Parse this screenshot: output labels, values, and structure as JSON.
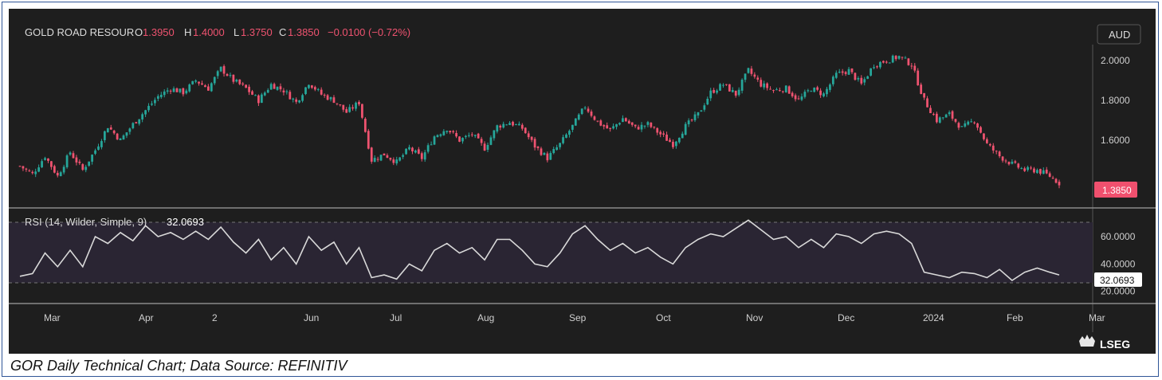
{
  "header": {
    "symbol": "GOLD ROAD RESOUR",
    "o_label": "O",
    "o_value": "1.3950",
    "h_label": "H",
    "h_value": "1.4000",
    "l_label": "L",
    "l_value": "1.3750",
    "c_label": "C",
    "c_value": "1.3850",
    "change": "−0.0100 (−0.72%)"
  },
  "currency": "AUD",
  "price_tag": "1.3850",
  "rsi_label": "RSI (14, Wilder, Simple, 9)",
  "rsi_value": "32.0693",
  "brand": "LSEG",
  "caption": "GOR Daily Technical Chart; Data Source: REFINITIV",
  "colors": {
    "up": "#26a69a",
    "down": "#ef5370",
    "background": "#1e1e1e",
    "rsi_band": "#2a2533",
    "rsi_line": "#d9d9d9",
    "price_tag": "#f0506e"
  },
  "chart_data": [
    {
      "type": "candlestick",
      "yticks": [
        "2.0000",
        "1.8000",
        "1.6000",
        "1.3850"
      ],
      "ylim": [
        1.3,
        2.08
      ],
      "xticks": [
        "Mar",
        "Apr",
        "2",
        "Jun",
        "Jul",
        "Aug",
        "Sep",
        "Oct",
        "Nov",
        "Dec",
        "2024",
        "Feb",
        "Mar"
      ],
      "close_path": [
        [
          0,
          1.47
        ],
        [
          4,
          1.43
        ],
        [
          8,
          1.52
        ],
        [
          12,
          1.42
        ],
        [
          16,
          1.54
        ],
        [
          20,
          1.45
        ],
        [
          24,
          1.55
        ],
        [
          28,
          1.67
        ],
        [
          32,
          1.6
        ],
        [
          36,
          1.68
        ],
        [
          40,
          1.75
        ],
        [
          44,
          1.82
        ],
        [
          48,
          1.86
        ],
        [
          52,
          1.84
        ],
        [
          56,
          1.9
        ],
        [
          60,
          1.86
        ],
        [
          64,
          1.96
        ],
        [
          68,
          1.9
        ],
        [
          72,
          1.86
        ],
        [
          76,
          1.8
        ],
        [
          80,
          1.88
        ],
        [
          84,
          1.85
        ],
        [
          88,
          1.79
        ],
        [
          92,
          1.89
        ],
        [
          96,
          1.83
        ],
        [
          100,
          1.8
        ],
        [
          104,
          1.74
        ],
        [
          108,
          1.79
        ],
        [
          112,
          1.5
        ],
        [
          116,
          1.53
        ],
        [
          120,
          1.49
        ],
        [
          124,
          1.56
        ],
        [
          128,
          1.51
        ],
        [
          132,
          1.62
        ],
        [
          136,
          1.66
        ],
        [
          140,
          1.6
        ],
        [
          144,
          1.63
        ],
        [
          148,
          1.56
        ],
        [
          152,
          1.67
        ],
        [
          156,
          1.69
        ],
        [
          160,
          1.66
        ],
        [
          164,
          1.57
        ],
        [
          168,
          1.51
        ],
        [
          172,
          1.58
        ],
        [
          176,
          1.67
        ],
        [
          180,
          1.77
        ],
        [
          184,
          1.69
        ],
        [
          188,
          1.65
        ],
        [
          192,
          1.71
        ],
        [
          196,
          1.66
        ],
        [
          200,
          1.68
        ],
        [
          204,
          1.63
        ],
        [
          208,
          1.58
        ],
        [
          212,
          1.67
        ],
        [
          216,
          1.73
        ],
        [
          220,
          1.84
        ],
        [
          224,
          1.88
        ],
        [
          228,
          1.83
        ],
        [
          232,
          1.95
        ],
        [
          236,
          1.88
        ],
        [
          240,
          1.85
        ],
        [
          244,
          1.86
        ],
        [
          248,
          1.8
        ],
        [
          252,
          1.86
        ],
        [
          256,
          1.83
        ],
        [
          260,
          1.93
        ],
        [
          264,
          1.95
        ],
        [
          268,
          1.88
        ],
        [
          272,
          1.98
        ],
        [
          276,
          2.0
        ],
        [
          280,
          2.02
        ],
        [
          284,
          1.98
        ],
        [
          288,
          1.8
        ],
        [
          292,
          1.7
        ],
        [
          296,
          1.73
        ],
        [
          300,
          1.66
        ],
        [
          304,
          1.7
        ],
        [
          308,
          1.58
        ],
        [
          312,
          1.52
        ],
        [
          316,
          1.48
        ],
        [
          320,
          1.45
        ],
        [
          324,
          1.45
        ],
        [
          328,
          1.42
        ],
        [
          331,
          1.385
        ]
      ]
    },
    {
      "type": "line",
      "series": [
        {
          "name": "RSI (14, Wilder, Simple, 9)"
        }
      ],
      "yticks": [
        "60.0000",
        "40.0000",
        "20.0000"
      ],
      "ylim": [
        14,
        74
      ],
      "levels": [
        70,
        30
      ],
      "points": [
        [
          0,
          31
        ],
        [
          4,
          33
        ],
        [
          8,
          48
        ],
        [
          12,
          38
        ],
        [
          16,
          50
        ],
        [
          20,
          38
        ],
        [
          24,
          60
        ],
        [
          28,
          55
        ],
        [
          32,
          63
        ],
        [
          36,
          57
        ],
        [
          40,
          68
        ],
        [
          44,
          60
        ],
        [
          48,
          63
        ],
        [
          52,
          58
        ],
        [
          56,
          64
        ],
        [
          60,
          58
        ],
        [
          64,
          67
        ],
        [
          68,
          56
        ],
        [
          72,
          48
        ],
        [
          76,
          58
        ],
        [
          80,
          43
        ],
        [
          84,
          52
        ],
        [
          88,
          40
        ],
        [
          92,
          60
        ],
        [
          96,
          50
        ],
        [
          100,
          56
        ],
        [
          104,
          40
        ],
        [
          108,
          52
        ],
        [
          112,
          30
        ],
        [
          116,
          32
        ],
        [
          120,
          29
        ],
        [
          124,
          40
        ],
        [
          128,
          35
        ],
        [
          132,
          50
        ],
        [
          136,
          55
        ],
        [
          140,
          48
        ],
        [
          144,
          52
        ],
        [
          148,
          43
        ],
        [
          152,
          58
        ],
        [
          156,
          58
        ],
        [
          160,
          50
        ],
        [
          164,
          40
        ],
        [
          168,
          38
        ],
        [
          172,
          48
        ],
        [
          176,
          62
        ],
        [
          180,
          68
        ],
        [
          184,
          58
        ],
        [
          188,
          50
        ],
        [
          192,
          55
        ],
        [
          196,
          48
        ],
        [
          200,
          52
        ],
        [
          204,
          45
        ],
        [
          208,
          40
        ],
        [
          212,
          52
        ],
        [
          216,
          58
        ],
        [
          220,
          62
        ],
        [
          224,
          60
        ],
        [
          228,
          66
        ],
        [
          232,
          72
        ],
        [
          236,
          65
        ],
        [
          240,
          58
        ],
        [
          244,
          60
        ],
        [
          248,
          52
        ],
        [
          252,
          58
        ],
        [
          256,
          52
        ],
        [
          260,
          62
        ],
        [
          264,
          60
        ],
        [
          268,
          55
        ],
        [
          272,
          62
        ],
        [
          276,
          64
        ],
        [
          280,
          62
        ],
        [
          284,
          55
        ],
        [
          288,
          34
        ],
        [
          292,
          32
        ],
        [
          296,
          30
        ],
        [
          300,
          34
        ],
        [
          304,
          33
        ],
        [
          308,
          30
        ],
        [
          312,
          36
        ],
        [
          316,
          28
        ],
        [
          320,
          34
        ],
        [
          324,
          37
        ],
        [
          328,
          34
        ],
        [
          331,
          32
        ]
      ]
    }
  ]
}
